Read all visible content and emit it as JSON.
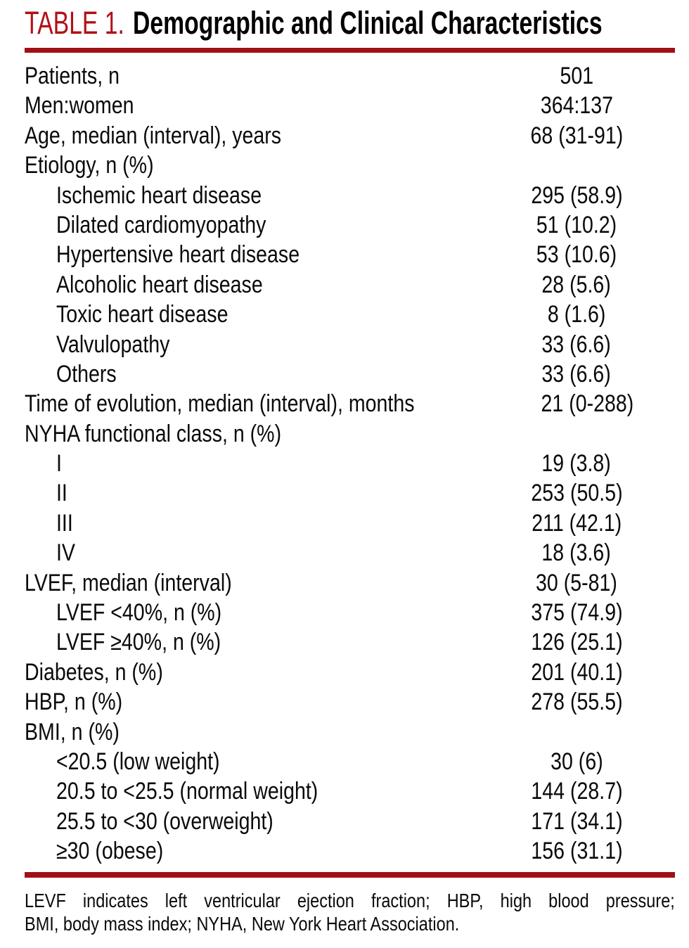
{
  "header": {
    "label": "TABLE 1.",
    "title": "Demographic and Clinical Characteristics"
  },
  "table": {
    "rows": [
      {
        "label": "Patients, n",
        "value": "501",
        "indent": 0
      },
      {
        "label": "Men:women",
        "value": "364:137",
        "indent": 0
      },
      {
        "label": "Age, median (interval), years",
        "value": "68 (31-91)",
        "indent": 0
      },
      {
        "label": "Etiology, n (%)",
        "value": "",
        "indent": 0
      },
      {
        "label": "Ischemic heart disease",
        "value": "295 (58.9)",
        "indent": 1
      },
      {
        "label": "Dilated cardiomyopathy",
        "value": "51 (10.2)",
        "indent": 1
      },
      {
        "label": "Hypertensive heart disease",
        "value": "53 (10.6)",
        "indent": 1
      },
      {
        "label": "Alcoholic heart disease",
        "value": "28 (5.6)",
        "indent": 1
      },
      {
        "label": "Toxic heart disease",
        "value": "8 (1.6)",
        "indent": 1
      },
      {
        "label": "Valvulopathy",
        "value": "33 (6.6)",
        "indent": 1
      },
      {
        "label": "Others",
        "value": "33 (6.6)",
        "indent": 1
      },
      {
        "label": "Time of evolution, median (interval), months",
        "value": "21 (0-288)",
        "indent": 0
      },
      {
        "label": "NYHA functional class, n (%)",
        "value": "",
        "indent": 0
      },
      {
        "label": "I",
        "value": "19 (3.8)",
        "indent": 1
      },
      {
        "label": "II",
        "value": "253 (50.5)",
        "indent": 1
      },
      {
        "label": "III",
        "value": "211 (42.1)",
        "indent": 1
      },
      {
        "label": "IV",
        "value": "18 (3.6)",
        "indent": 1
      },
      {
        "label": "LVEF, median (interval)",
        "value": "30 (5-81)",
        "indent": 0
      },
      {
        "label": "LVEF <40%, n (%)",
        "value": "375 (74.9)",
        "indent": 1
      },
      {
        "label": "LVEF ≥40%, n (%)",
        "value": "126 (25.1)",
        "indent": 1
      },
      {
        "label": "Diabetes, n (%)",
        "value": "201 (40.1)",
        "indent": 0
      },
      {
        "label": "HBP, n (%)",
        "value": "278 (55.5)",
        "indent": 0
      },
      {
        "label": "BMI, n (%)",
        "value": "",
        "indent": 0
      },
      {
        "label": "<20.5 (low weight)",
        "value": "30 (6)",
        "indent": 1
      },
      {
        "label": "20.5 to <25.5 (normal weight)",
        "value": "144 (28.7)",
        "indent": 1
      },
      {
        "label": "25.5 to <30 (overweight)",
        "value": "171 (34.1)",
        "indent": 1
      },
      {
        "label": "≥30 (obese)",
        "value": "156 (31.1)",
        "indent": 1
      }
    ]
  },
  "footnote": {
    "line1": "LEVF indicates left ventricular ejection fraction; HBP, high blood pressure;",
    "line2": "BMI, body mass index; NYHA, New York Heart Association."
  },
  "colors": {
    "title_red": "#b11117",
    "rule_red": "#a01016",
    "text": "#0a0a0a",
    "background": "#ffffff"
  }
}
